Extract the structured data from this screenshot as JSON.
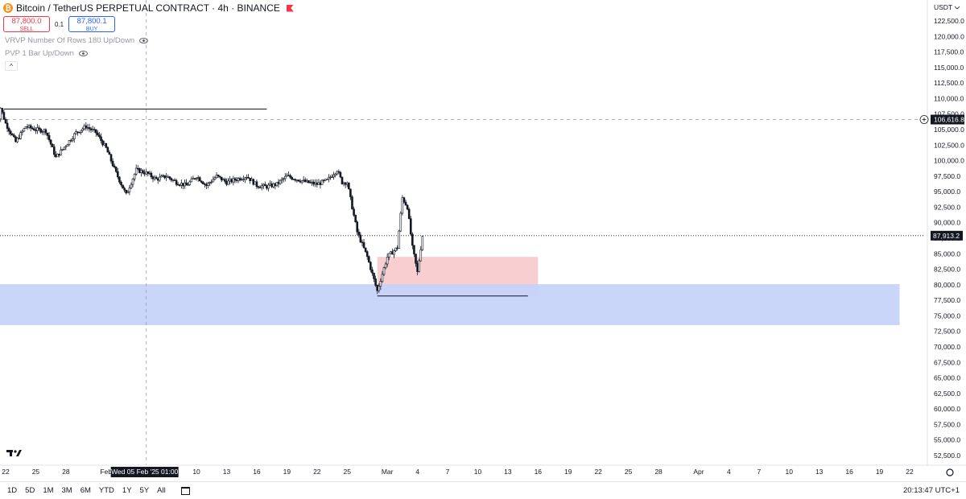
{
  "header": {
    "logo_glyph": "₿",
    "title": "Bitcoin / TetherUS PERPETUAL CONTRACT · 4h · BINANCE"
  },
  "trade": {
    "sell_price": "87,800.0",
    "sell_label": "SELL",
    "spread": "0.1",
    "buy_price": "87,800.1",
    "buy_label": "BUY"
  },
  "indicators": [
    {
      "label": "VRVP Number Of Rows 180 Up/Down"
    },
    {
      "label": "PVP 1 Bar Up/Down"
    }
  ],
  "collapse_glyph": "^",
  "bottom": {
    "ranges": [
      "1D",
      "5D",
      "1M",
      "3M",
      "6M",
      "YTD",
      "1Y",
      "5Y",
      "All"
    ],
    "clock": "20:13:47 UTC+1"
  },
  "colors": {
    "up": "#131722",
    "down": "#131722",
    "pink_zone": "#f7c5c9",
    "blue_zone": "#c6d3f9",
    "grid_text": "#131722",
    "axis_border": "#e0e3eb"
  },
  "chart_data": {
    "type": "candlestick",
    "currency": "USDT",
    "timeframe": "4h",
    "y_axis": {
      "min": 51250,
      "max": 124500,
      "ticks": [
        "122,500.0",
        "120,000.0",
        "117,500.0",
        "115,000.0",
        "112,500.0",
        "110,000.0",
        "107,500.0",
        "105,000.0",
        "102,500.0",
        "100,000.0",
        "97,500.0",
        "95,000.0",
        "92,500.0",
        "90,000.0",
        "87,500.0",
        "85,000.0",
        "82,500.0",
        "80,000.0",
        "77,500.0",
        "75,000.0",
        "72,500.0",
        "70,000.0",
        "67,500.0",
        "65,000.0",
        "62,500.0",
        "60,000.0",
        "57,500.0",
        "55,000.0",
        "52,500.0"
      ]
    },
    "x_axis": {
      "start_date": "2025-01-21",
      "end_date": "2025-04-23",
      "ticks": [
        {
          "date": "2025-01-22",
          "label": "22"
        },
        {
          "date": "2025-01-25",
          "label": "25"
        },
        {
          "date": "2025-01-28",
          "label": "28"
        },
        {
          "date": "2025-02-01",
          "label": "Feb"
        },
        {
          "date": "2025-02-10",
          "label": "10"
        },
        {
          "date": "2025-02-13",
          "label": "13"
        },
        {
          "date": "2025-02-16",
          "label": "16"
        },
        {
          "date": "2025-02-19",
          "label": "19"
        },
        {
          "date": "2025-02-22",
          "label": "22"
        },
        {
          "date": "2025-02-25",
          "label": "25"
        },
        {
          "date": "2025-03-01",
          "label": "Mar"
        },
        {
          "date": "2025-03-04",
          "label": "4"
        },
        {
          "date": "2025-03-07",
          "label": "7"
        },
        {
          "date": "2025-03-10",
          "label": "10"
        },
        {
          "date": "2025-03-13",
          "label": "13"
        },
        {
          "date": "2025-03-16",
          "label": "16"
        },
        {
          "date": "2025-03-19",
          "label": "19"
        },
        {
          "date": "2025-03-22",
          "label": "22"
        },
        {
          "date": "2025-03-25",
          "label": "25"
        },
        {
          "date": "2025-03-28",
          "label": "28"
        },
        {
          "date": "2025-04-01",
          "label": "Apr"
        },
        {
          "date": "2025-04-04",
          "label": "4"
        },
        {
          "date": "2025-04-07",
          "label": "7"
        },
        {
          "date": "2025-04-10",
          "label": "10"
        },
        {
          "date": "2025-04-13",
          "label": "13"
        },
        {
          "date": "2025-04-16",
          "label": "16"
        },
        {
          "date": "2025-04-19",
          "label": "19"
        },
        {
          "date": "2025-04-22",
          "label": "22"
        }
      ]
    },
    "crosshair": {
      "date": "2025-02-05",
      "label": "Wed 05 Feb '25   01:00",
      "price": 106616.8,
      "price_label": "106,616.8"
    },
    "last_price": {
      "value": 87913.2,
      "label": "87,913.2"
    },
    "price_path": [
      {
        "date": "2025-01-21",
        "price": 104000
      },
      {
        "date": "2025-01-21.5",
        "price": 108500
      },
      {
        "date": "2025-01-22",
        "price": 106000
      },
      {
        "date": "2025-01-23",
        "price": 103000
      },
      {
        "date": "2025-01-24",
        "price": 105500
      },
      {
        "date": "2025-01-25",
        "price": 105000
      },
      {
        "date": "2025-01-26",
        "price": 104800
      },
      {
        "date": "2025-01-27",
        "price": 100500
      },
      {
        "date": "2025-01-28",
        "price": 102500
      },
      {
        "date": "2025-01-29",
        "price": 104500
      },
      {
        "date": "2025-01-30",
        "price": 105500
      },
      {
        "date": "2025-01-31",
        "price": 104500
      },
      {
        "date": "2025-02-01",
        "price": 102000
      },
      {
        "date": "2025-02-02",
        "price": 98000
      },
      {
        "date": "2025-02-03",
        "price": 94500
      },
      {
        "date": "2025-02-04",
        "price": 98500
      },
      {
        "date": "2025-02-05",
        "price": 98000
      },
      {
        "date": "2025-02-06",
        "price": 97000
      },
      {
        "date": "2025-02-07",
        "price": 97500
      },
      {
        "date": "2025-02-08",
        "price": 96500
      },
      {
        "date": "2025-02-09",
        "price": 96000
      },
      {
        "date": "2025-02-10",
        "price": 97500
      },
      {
        "date": "2025-02-11",
        "price": 96000
      },
      {
        "date": "2025-02-12",
        "price": 97500
      },
      {
        "date": "2025-02-13",
        "price": 96500
      },
      {
        "date": "2025-02-14",
        "price": 97000
      },
      {
        "date": "2025-02-15",
        "price": 97500
      },
      {
        "date": "2025-02-16",
        "price": 96000
      },
      {
        "date": "2025-02-17",
        "price": 95800
      },
      {
        "date": "2025-02-18",
        "price": 96200
      },
      {
        "date": "2025-02-19",
        "price": 97500
      },
      {
        "date": "2025-02-20",
        "price": 97000
      },
      {
        "date": "2025-02-21",
        "price": 96500
      },
      {
        "date": "2025-02-22",
        "price": 96200
      },
      {
        "date": "2025-02-23",
        "price": 96800
      },
      {
        "date": "2025-02-24",
        "price": 98500
      },
      {
        "date": "2025-02-24.5",
        "price": 96500
      },
      {
        "date": "2025-02-25",
        "price": 96500
      },
      {
        "date": "2025-02-26",
        "price": 88500
      },
      {
        "date": "2025-02-27",
        "price": 84500
      },
      {
        "date": "2025-02-28",
        "price": 79000
      },
      {
        "date": "2025-03-01",
        "price": 84500
      },
      {
        "date": "2025-03-02",
        "price": 86000
      },
      {
        "date": "2025-03-02.5",
        "price": 94000
      },
      {
        "date": "2025-03-03",
        "price": 92500
      },
      {
        "date": "2025-03-03.5",
        "price": 86000
      },
      {
        "date": "2025-03-04",
        "price": 82000
      },
      {
        "date": "2025-03-04.5",
        "price": 87900
      }
    ],
    "annotations": [
      {
        "type": "hline",
        "price": 108300,
        "from": "2025-01-21",
        "to": "2025-02-17"
      },
      {
        "type": "hline",
        "price": 78200,
        "from": "2025-02-28",
        "to": "2025-03-15"
      },
      {
        "type": "zone",
        "color": "pink",
        "top": 84500,
        "bottom": 78200,
        "from": "2025-02-28",
        "to": "2025-03-16"
      },
      {
        "type": "zone",
        "color": "blue",
        "top": 80100,
        "bottom": 73500,
        "from": "2025-01-21",
        "to": "2025-04-21"
      }
    ]
  }
}
